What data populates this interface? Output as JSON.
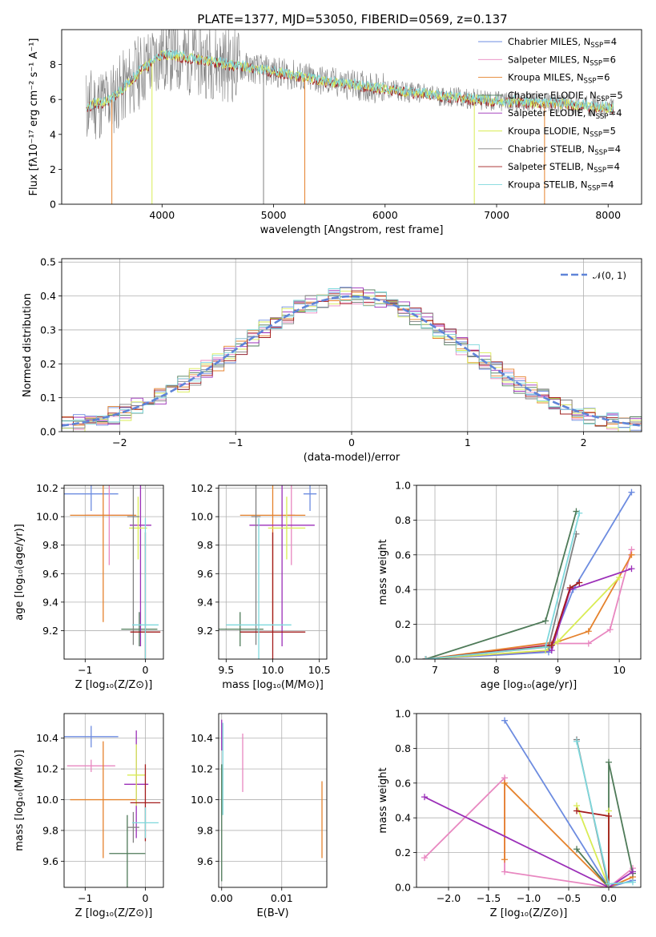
{
  "title": "PLATE=1377, MJD=53050, FIBERID=0569, z=0.137",
  "colors": {
    "c0": "#6d8ce0",
    "c1": "#e887c0",
    "c2": "#e5822c",
    "c3": "#4e7a58",
    "c4": "#9b2fb8",
    "c5": "#d9ec55",
    "c6": "#808080",
    "c7": "#a31c1c",
    "c8": "#7ed8dc",
    "c9": "#5f84d8"
  },
  "chart_data": [
    {
      "id": "spectrum",
      "type": "line",
      "xlabel": "wavelength [Angstrom, rest frame]",
      "ylabel": "Flux [fλ10⁻¹⁷ erg cm⁻² s⁻¹ A⁻¹]",
      "xlim": [
        3100,
        8300
      ],
      "ylim": [
        0,
        10
      ],
      "xticks": [
        "4000",
        "5000",
        "6000",
        "7000",
        "8000"
      ],
      "yticks": [
        "0",
        "2",
        "4",
        "6",
        "8"
      ],
      "grid": false,
      "legend": "upper right",
      "profile": {
        "x": [
          3320,
          3550,
          3800,
          4000,
          4250,
          4600,
          5000,
          5500,
          6000,
          6500,
          7000,
          7500,
          8050
        ],
        "y": [
          5.6,
          6.0,
          7.6,
          8.6,
          8.4,
          8.0,
          7.6,
          7.0,
          6.6,
          6.2,
          5.9,
          5.8,
          5.5
        ]
      },
      "spikes": [
        {
          "x": 3550,
          "color": "c2"
        },
        {
          "x": 3910,
          "color": "c5"
        },
        {
          "x": 4910,
          "color": "c6"
        },
        {
          "x": 5280,
          "color": "c2"
        },
        {
          "x": 6800,
          "color": "c5"
        },
        {
          "x": 7430,
          "color": "c2"
        }
      ],
      "series": [
        {
          "name": "Chabrier MILES, N",
          "sub": "SSP",
          "suffix": "=4",
          "color": "c0"
        },
        {
          "name": "Salpeter MILES, N",
          "sub": "SSP",
          "suffix": "=6",
          "color": "c1"
        },
        {
          "name": "Kroupa MILES, N",
          "sub": "SSP",
          "suffix": "=6",
          "color": "c2"
        },
        {
          "name": "Chabrier ELODIE, N",
          "sub": "SSP",
          "suffix": "=5",
          "color": "c3"
        },
        {
          "name": "Salpeter ELODIE, N",
          "sub": "SSP",
          "suffix": "=4",
          "color": "c4"
        },
        {
          "name": "Kroupa ELODIE, N",
          "sub": "SSP",
          "suffix": "=5",
          "color": "c5"
        },
        {
          "name": "Chabrier STELIB, N",
          "sub": "SSP",
          "suffix": "=4",
          "color": "c6"
        },
        {
          "name": "Salpeter STELIB, N",
          "sub": "SSP",
          "suffix": "=4",
          "color": "c7"
        },
        {
          "name": "Kroupa STELIB, N",
          "sub": "SSP",
          "suffix": "=4",
          "color": "c8"
        }
      ]
    },
    {
      "id": "residuals",
      "type": "line",
      "xlabel": "(data-model)/error",
      "ylabel": "Normed distribution",
      "xlim": [
        -2.5,
        2.5
      ],
      "ylim": [
        0,
        0.51
      ],
      "xticks": [
        "−2",
        "−1",
        "0",
        "1",
        "2"
      ],
      "xtick_values": [
        -2,
        -1,
        0,
        1,
        2
      ],
      "yticks": [
        "0.0",
        "0.1",
        "0.2",
        "0.3",
        "0.4",
        "0.5"
      ],
      "ytick_values": [
        0,
        0.1,
        0.2,
        0.3,
        0.4,
        0.5
      ],
      "grid": true,
      "legend": "upper right",
      "normal": {
        "name": "𝒩(0, 1)",
        "color": "c9"
      },
      "bin_width": 0.1,
      "hist_series": [
        {
          "color": "c0",
          "seed": 1
        },
        {
          "color": "c1",
          "seed": 2
        },
        {
          "color": "c2",
          "seed": 3
        },
        {
          "color": "c3",
          "seed": 4
        },
        {
          "color": "c4",
          "seed": 5
        },
        {
          "color": "c5",
          "seed": 6
        },
        {
          "color": "c6",
          "seed": 7
        },
        {
          "color": "c7",
          "seed": 8
        },
        {
          "color": "c8",
          "seed": 9
        }
      ]
    },
    {
      "id": "age-vs-Z",
      "type": "scatter",
      "xlabel": "Z [log₁₀(Z/Z⊙)]",
      "ylabel": "age  [log₁₀(age/yr)]",
      "xlim": [
        -1.35,
        0.3
      ],
      "ylim": [
        9.0,
        10.22
      ],
      "xticks": [
        "−1",
        "0"
      ],
      "xtick_values": [
        -1,
        0
      ],
      "yticks": [
        "9.2",
        "9.4",
        "9.6",
        "9.8",
        "10.0",
        "10.2"
      ],
      "ytick_values": [
        9.2,
        9.4,
        9.6,
        9.8,
        10.0,
        10.2
      ],
      "grid": true,
      "points": [
        {
          "x": -0.9,
          "xerr": 0.45,
          "y": 10.16,
          "yerr": 0.12,
          "color": "c0"
        },
        {
          "x": -0.6,
          "xerr": 0.4,
          "y": 10.01,
          "yerr": 0.35,
          "color": "c1"
        },
        {
          "x": -0.7,
          "xerr": 0.55,
          "y": 10.01,
          "yerr": 0.75,
          "color": "c2"
        },
        {
          "x": -0.1,
          "xerr": 0.3,
          "y": 9.21,
          "yerr": 0.12,
          "color": "c3"
        },
        {
          "x": -0.08,
          "xerr": 0.18,
          "y": 9.94,
          "yerr": 0.85,
          "color": "c4"
        },
        {
          "x": -0.12,
          "xerr": 0.15,
          "y": 9.92,
          "yerr": 0.22,
          "color": "c5"
        },
        {
          "x": -0.2,
          "xerr": 0.1,
          "y": 10.0,
          "yerr": 0.9,
          "color": "c6"
        },
        {
          "x": 0.0,
          "xerr": 0.25,
          "y": 9.19,
          "yerr": 0.7,
          "color": "c7"
        },
        {
          "x": 0.0,
          "xerr": 0.22,
          "y": 9.24,
          "yerr": 0.75,
          "color": "c8"
        }
      ]
    },
    {
      "id": "age-vs-mass",
      "type": "scatter",
      "xlabel": "mass [log₁₀(M/M⊙)]",
      "ylabel": "",
      "xlim": [
        9.42,
        10.58
      ],
      "ylim": [
        9.0,
        10.22
      ],
      "xticks": [
        "9.5",
        "10.0",
        "10.5"
      ],
      "xtick_values": [
        9.5,
        10.0,
        10.5
      ],
      "yticks": [
        "9.2",
        "9.4",
        "9.6",
        "9.8",
        "10.0",
        "10.2"
      ],
      "ytick_values": [
        9.2,
        9.4,
        9.6,
        9.8,
        10.0,
        10.2
      ],
      "grid": true,
      "points": [
        {
          "x": 10.4,
          "xerr": 0.07,
          "y": 10.16,
          "yerr": 0.12,
          "color": "c0"
        },
        {
          "x": 10.2,
          "xerr": 0.04,
          "y": 10.01,
          "yerr": 0.35,
          "color": "c1"
        },
        {
          "x": 10.0,
          "xerr": 0.35,
          "y": 10.01,
          "yerr": 0.75,
          "color": "c2"
        },
        {
          "x": 9.65,
          "xerr": 0.25,
          "y": 9.21,
          "yerr": 0.12,
          "color": "c3"
        },
        {
          "x": 10.1,
          "xerr": 0.35,
          "y": 9.94,
          "yerr": 0.85,
          "color": "c4"
        },
        {
          "x": 10.15,
          "xerr": 0.2,
          "y": 9.92,
          "yerr": 0.22,
          "color": "c5"
        },
        {
          "x": 9.82,
          "xerr": 0.05,
          "y": 10.0,
          "yerr": 0.9,
          "color": "c6"
        },
        {
          "x": 10.0,
          "xerr": 0.35,
          "y": 9.19,
          "yerr": 0.7,
          "color": "c7"
        },
        {
          "x": 9.85,
          "xerr": 0.35,
          "y": 9.24,
          "yerr": 0.75,
          "color": "c8"
        }
      ]
    },
    {
      "id": "massweight-vs-age",
      "type": "line",
      "xlabel": "age  [log₁₀(age/yr)]",
      "ylabel": "mass weight",
      "xlim": [
        6.7,
        10.35
      ],
      "ylim": [
        0,
        1.0
      ],
      "xticks": [
        "7",
        "8",
        "9",
        "10"
      ],
      "xtick_values": [
        7,
        8,
        9,
        10
      ],
      "yticks": [
        "0.0",
        "0.2",
        "0.4",
        "0.6",
        "0.8",
        "1.0"
      ],
      "ytick_values": [
        0,
        0.2,
        0.4,
        0.6,
        0.8,
        1.0
      ],
      "grid": true,
      "series": [
        {
          "color": "c0",
          "x": [
            6.85,
            8.85,
            9.25,
            10.2
          ],
          "y": [
            0.0,
            0.04,
            0.4,
            0.96
          ]
        },
        {
          "color": "c1",
          "x": [
            6.85,
            8.9,
            9.5,
            9.85,
            10.2
          ],
          "y": [
            0.0,
            0.09,
            0.09,
            0.17,
            0.63
          ]
        },
        {
          "color": "c2",
          "x": [
            6.85,
            9.0,
            9.5,
            10.2
          ],
          "y": [
            0.0,
            0.1,
            0.16,
            0.6
          ]
        },
        {
          "color": "c3",
          "x": [
            6.85,
            8.8,
            9.3
          ],
          "y": [
            0.0,
            0.22,
            0.85
          ]
        },
        {
          "color": "c4",
          "x": [
            6.85,
            8.9,
            9.2,
            10.2
          ],
          "y": [
            0.0,
            0.05,
            0.4,
            0.52
          ]
        },
        {
          "color": "c5",
          "x": [
            6.85,
            8.8,
            9.0,
            10.0
          ],
          "y": [
            0.0,
            0.05,
            0.1,
            0.47
          ]
        },
        {
          "color": "c6",
          "x": [
            6.85,
            8.85,
            9.3
          ],
          "y": [
            0.0,
            0.07,
            0.72
          ]
        },
        {
          "color": "c7",
          "x": [
            6.85,
            8.9,
            9.2,
            9.35
          ],
          "y": [
            0.0,
            0.08,
            0.41,
            0.44
          ]
        },
        {
          "color": "c8",
          "x": [
            6.85,
            8.8,
            9.35
          ],
          "y": [
            0.0,
            0.07,
            0.84
          ]
        }
      ]
    },
    {
      "id": "mass-vs-Z",
      "type": "scatter",
      "xlabel": "Z [log₁₀(Z/Z⊙)]",
      "ylabel": "mass [log₁₀(M/M⊙)]",
      "xlim": [
        -1.35,
        0.3
      ],
      "ylim": [
        9.43,
        10.56
      ],
      "xticks": [
        "−1",
        "0"
      ],
      "xtick_values": [
        -1,
        0
      ],
      "yticks": [
        "9.6",
        "9.8",
        "10.0",
        "10.2",
        "10.4"
      ],
      "ytick_values": [
        9.6,
        9.8,
        10.0,
        10.2,
        10.4
      ],
      "grid": true,
      "points": [
        {
          "x": -0.9,
          "xerr": 0.45,
          "y": 10.41,
          "yerr": 0.07,
          "color": "c0"
        },
        {
          "x": -0.9,
          "xerr": 0.4,
          "y": 10.22,
          "yerr": 0.04,
          "color": "c1"
        },
        {
          "x": -0.7,
          "xerr": 0.55,
          "y": 10.0,
          "yerr": 0.38,
          "color": "c2"
        },
        {
          "x": -0.3,
          "xerr": 0.3,
          "y": 9.65,
          "yerr": 0.25,
          "color": "c3"
        },
        {
          "x": -0.15,
          "xerr": 0.2,
          "y": 10.1,
          "yerr": 0.35,
          "color": "c4"
        },
        {
          "x": -0.15,
          "xerr": 0.15,
          "y": 10.16,
          "yerr": 0.2,
          "color": "c5"
        },
        {
          "x": -0.2,
          "xerr": 0.1,
          "y": 9.82,
          "yerr": 0.1,
          "color": "c6"
        },
        {
          "x": 0.0,
          "xerr": 0.25,
          "y": 9.98,
          "yerr": 0.25,
          "color": "c7"
        },
        {
          "x": 0.0,
          "xerr": 0.22,
          "y": 9.85,
          "yerr": 0.1,
          "color": "c8"
        }
      ]
    },
    {
      "id": "mass-vs-EBV",
      "type": "scatter",
      "xlabel": "E(B-V)",
      "ylabel": "",
      "xlim": [
        -0.0005,
        0.0175
      ],
      "ylim": [
        9.43,
        10.56
      ],
      "xticks": [
        "0.00",
        "0.01"
      ],
      "xtick_values": [
        0,
        0.01
      ],
      "yticks": [
        "9.6",
        "9.8",
        "10.0",
        "10.2",
        "10.4"
      ],
      "ytick_values": [
        9.6,
        9.8,
        10.0,
        10.2,
        10.4
      ],
      "grid": true,
      "points": [
        {
          "x": 0.0,
          "xerr": 0,
          "y": 10.42,
          "yerr": 0.1,
          "color": "c4"
        },
        {
          "x": 0.0002,
          "xerr": 0,
          "y": 10.2,
          "yerr": 0.3,
          "color": "c8"
        },
        {
          "x": 0.0,
          "xerr": 0,
          "y": 9.85,
          "yerr": 0.38,
          "color": "c3"
        },
        {
          "x": 0.0035,
          "xerr": 0,
          "y": 10.24,
          "yerr": 0.19,
          "color": "c1"
        },
        {
          "x": 0.0167,
          "xerr": 0,
          "y": 9.87,
          "yerr": 0.25,
          "color": "c2"
        }
      ]
    },
    {
      "id": "massweight-vs-Z",
      "type": "line",
      "xlabel": "Z [log₁₀(Z/Z⊙)]",
      "ylabel": "mass weight",
      "xlim": [
        -2.4,
        0.4
      ],
      "ylim": [
        0,
        1.0
      ],
      "xticks": [
        "−2.0",
        "−1.5",
        "−1.0",
        "−0.5",
        "0.0"
      ],
      "xtick_values": [
        -2,
        -1.5,
        -1,
        -0.5,
        0
      ],
      "yticks": [
        "0.0",
        "0.2",
        "0.4",
        "0.6",
        "0.8",
        "1.0"
      ],
      "ytick_values": [
        0,
        0.2,
        0.4,
        0.6,
        0.8,
        1.0
      ],
      "grid": true,
      "series": [
        {
          "color": "c0",
          "x": [
            -1.3,
            0.0,
            0.3
          ],
          "y": [
            0.96,
            0.0,
            0.04
          ]
        },
        {
          "color": "c1",
          "x": [
            -2.3,
            -1.3,
            -1.3,
            0.0,
            0.3
          ],
          "y": [
            0.17,
            0.63,
            0.09,
            0.0,
            0.11
          ]
        },
        {
          "color": "c2",
          "x": [
            -1.3,
            -1.3,
            0.0,
            0.3
          ],
          "y": [
            0.16,
            0.6,
            0.0,
            0.06
          ]
        },
        {
          "color": "c3",
          "x": [
            -0.4,
            0.0,
            0.0,
            0.3
          ],
          "y": [
            0.22,
            0.0,
            0.72,
            0.08
          ]
        },
        {
          "color": "c4",
          "x": [
            -2.3,
            0.0,
            0.3
          ],
          "y": [
            0.52,
            0.0,
            0.09
          ]
        },
        {
          "color": "c5",
          "x": [
            -0.4,
            0.0,
            0.0
          ],
          "y": [
            0.47,
            0.0,
            0.44
          ]
        },
        {
          "color": "c6",
          "x": [
            -0.4,
            0.0
          ],
          "y": [
            0.85,
            0.0
          ]
        },
        {
          "color": "c7",
          "x": [
            -0.4,
            0.0,
            0.0
          ],
          "y": [
            0.44,
            0.41,
            0.0
          ]
        },
        {
          "color": "c8",
          "x": [
            -0.4,
            0.0,
            0.3
          ],
          "y": [
            0.84,
            0.02,
            0.03
          ]
        }
      ]
    }
  ]
}
